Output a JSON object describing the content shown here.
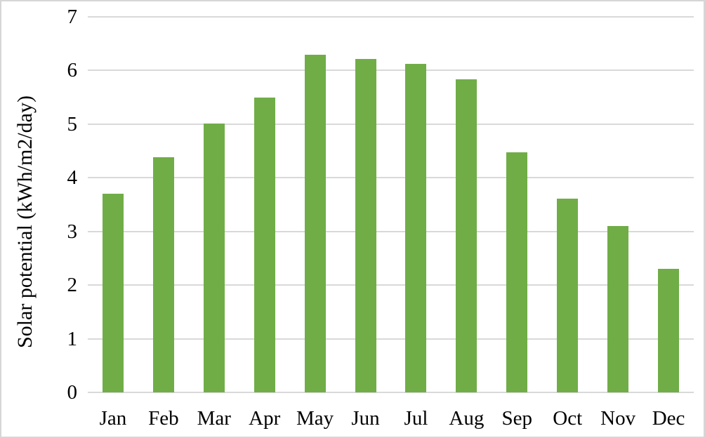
{
  "figure": {
    "background": "#ffffff",
    "border_color": "#d6d6d6",
    "text_color": "#000000"
  },
  "chart_data": {
    "type": "bar",
    "title": "",
    "categories": [
      "Jan",
      "Feb",
      "Mar",
      "Apr",
      "May",
      "Jun",
      "Jul",
      "Aug",
      "Sep",
      "Oct",
      "Nov",
      "Dec"
    ],
    "values": [
      3.7,
      4.38,
      5.01,
      5.5,
      6.29,
      6.22,
      6.12,
      5.84,
      4.47,
      3.61,
      3.1,
      2.3
    ],
    "xlabel": "",
    "ylabel": "Solar potential (kWh/m2/day)",
    "ylim": [
      0,
      7
    ],
    "yticks": [
      0,
      1,
      2,
      3,
      4,
      5,
      6,
      7
    ],
    "bar_color": "#70ad47",
    "gridline_color": "#d9d9d9",
    "axis_line_color": "#d9d9d9",
    "grid": true,
    "legend_position": "none"
  }
}
